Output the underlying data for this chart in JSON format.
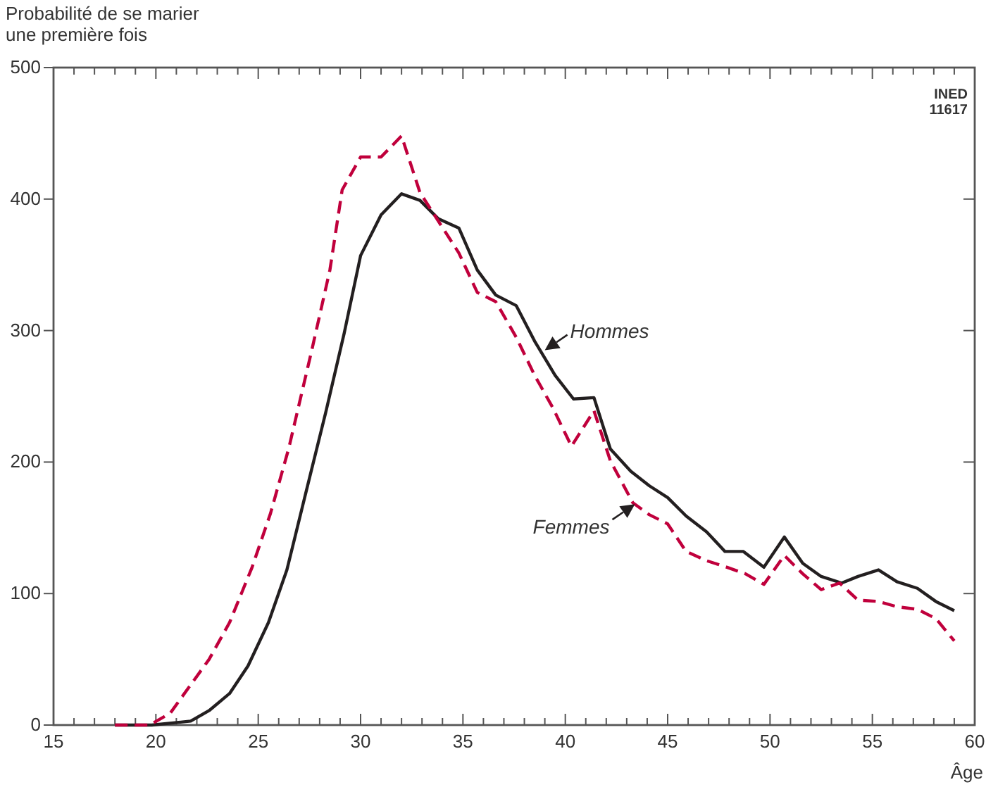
{
  "chart_data": {
    "type": "line",
    "ylabel": "Probabilité de se marier\nune première fois",
    "xlabel": "Âge",
    "xlim": [
      15,
      60
    ],
    "ylim": [
      0,
      500
    ],
    "xticks": [
      15,
      {
        "value": 16,
        "label": null
      },
      {
        "value": 17,
        "label": null
      },
      {
        "value": 18,
        "label": null
      },
      {
        "value": 19,
        "label": null
      },
      20,
      {
        "value": 21,
        "label": null
      },
      {
        "value": 22,
        "label": null
      },
      {
        "value": 23,
        "label": null
      },
      {
        "value": 24,
        "label": null
      },
      25,
      {
        "value": 26,
        "label": null
      },
      {
        "value": 27,
        "label": null
      },
      {
        "value": 28,
        "label": null
      },
      {
        "value": 29,
        "label": null
      },
      30,
      {
        "value": 31,
        "label": null
      },
      {
        "value": 32,
        "label": null
      },
      {
        "value": 33,
        "label": null
      },
      {
        "value": 34,
        "label": null
      },
      35,
      {
        "value": 36,
        "label": null
      },
      {
        "value": 37,
        "label": null
      },
      {
        "value": 38,
        "label": null
      },
      {
        "value": 39,
        "label": null
      },
      40,
      {
        "value": 41,
        "label": null
      },
      {
        "value": 42,
        "label": null
      },
      {
        "value": 43,
        "label": null
      },
      {
        "value": 44,
        "label": null
      },
      45,
      {
        "value": 46,
        "label": null
      },
      {
        "value": 47,
        "label": null
      },
      {
        "value": 48,
        "label": null
      },
      {
        "value": 49,
        "label": null
      },
      50,
      {
        "value": 51,
        "label": null
      },
      {
        "value": 52,
        "label": null
      },
      {
        "value": 53,
        "label": null
      },
      {
        "value": 54,
        "label": null
      },
      55,
      {
        "value": 56,
        "label": null
      },
      {
        "value": 57,
        "label": null
      },
      {
        "value": 58,
        "label": null
      },
      {
        "value": 59,
        "label": null
      },
      60
    ],
    "yticks": [
      0,
      100,
      200,
      300,
      400,
      500
    ],
    "marker": "none",
    "series": [
      {
        "color": "#231f20",
        "line_style": "solid",
        "x": [
          18.0,
          19.8,
          21.7,
          22.6,
          23.6,
          24.5,
          25.5,
          26.4,
          27.3,
          28.3,
          29.2,
          30.0,
          31.0,
          32.0,
          32.9,
          33.8,
          34.8,
          35.7,
          36.6,
          37.6,
          38.5,
          39.5,
          40.4,
          41.4,
          42.2,
          43.2,
          44.1,
          45.0,
          45.9,
          46.9,
          47.8,
          48.7,
          49.7,
          50.7,
          51.6,
          52.5,
          53.5,
          54.3,
          55.3,
          56.2,
          57.2,
          58.1,
          59.0
        ],
        "values": [
          0,
          0,
          3,
          11,
          24,
          45,
          78,
          118,
          175,
          238,
          298,
          357,
          388,
          404,
          399,
          385,
          378,
          346,
          327,
          319,
          292,
          266,
          248,
          249,
          210,
          193,
          182,
          173,
          159,
          147,
          132,
          132,
          120,
          143,
          123,
          113,
          108,
          113,
          118,
          109,
          104,
          94,
          87
        ]
      },
      {
        "color": "#c0003c",
        "line_style": "dashed",
        "x": [
          18.0,
          19.7,
          20.7,
          22.6,
          23.6,
          24.7,
          25.6,
          26.5,
          27.6,
          28.5,
          29.1,
          30.0,
          31.0,
          32.0,
          32.9,
          34.8,
          35.7,
          36.6,
          37.6,
          38.5,
          39.4,
          40.3,
          41.4,
          42.2,
          43.3,
          44.1,
          45.0,
          45.9,
          46.9,
          47.9,
          48.8,
          49.7,
          50.7,
          51.6,
          52.5,
          53.4,
          54.3,
          55.3,
          56.2,
          57.2,
          58.1,
          59.0
        ],
        "values": [
          0,
          0,
          9,
          50,
          78,
          120,
          161,
          211,
          284,
          346,
          407,
          432,
          432,
          448,
          405,
          359,
          329,
          322,
          295,
          266,
          241,
          212,
          239,
          201,
          169,
          160,
          153,
          132,
          125,
          120,
          115,
          107,
          129,
          115,
          103,
          108,
          95,
          94,
          90,
          88,
          81,
          64
        ]
      }
    ],
    "annotations": [
      {
        "text": "Hommes",
        "x": 39.0,
        "y": 285
      },
      {
        "text": "Femmes",
        "x": 43.4,
        "y": 168
      },
      "INED\n11617"
    ]
  }
}
